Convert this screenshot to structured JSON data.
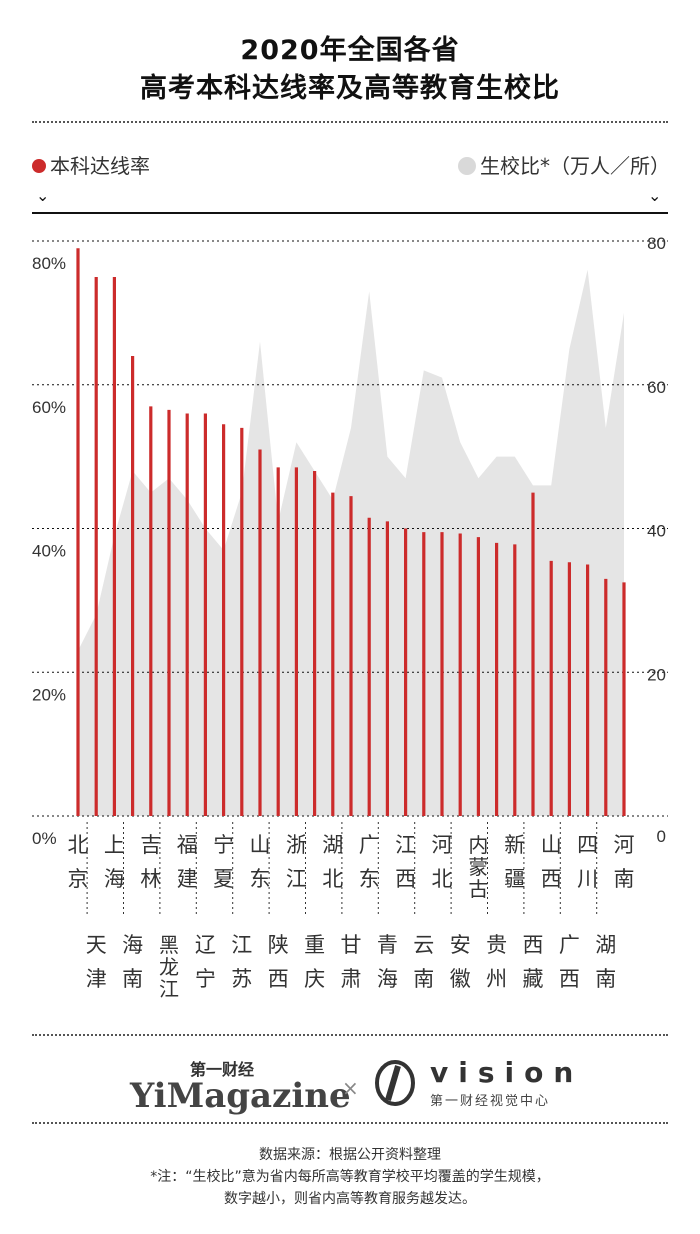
{
  "title_line1": "2020年全国各省",
  "title_line2": "高考本科达线率及高等教育生校比",
  "legend": {
    "left_label": "本科达线率",
    "right_label": "生校比*（万人／所）",
    "left_color": "#cc2b2b",
    "right_color": "#d9d9d9"
  },
  "chevron": "⌄",
  "chart_data": {
    "type": "bar",
    "title": "2020年全国各省 高考本科达线率及高等教育生校比",
    "y_left_label": "本科达线率",
    "y_right_label": "生校比*（万人／所）",
    "y_left_ticks": [
      "80%",
      "60%",
      "40%",
      "20%",
      "0%"
    ],
    "y_right_ticks": [
      "80",
      "60",
      "40",
      "20",
      "0"
    ],
    "y_left_lim": [
      0,
      80
    ],
    "y_right_lim": [
      0,
      80
    ],
    "categories": [
      "北京",
      "天津",
      "上海",
      "海南",
      "吉林",
      "黑龙江",
      "福建",
      "辽宁",
      "宁夏",
      "江苏",
      "山东",
      "陕西",
      "浙江",
      "重庆",
      "湖北",
      "甘肃",
      "广东",
      "青海",
      "江西",
      "云南",
      "河北",
      "安徽",
      "内蒙古",
      "贵州",
      "新疆",
      "西藏",
      "山西",
      "广西",
      "四川",
      "湖南",
      "河南"
    ],
    "row1_labels": [
      "北京",
      "上海",
      "吉林",
      "福建",
      "宁夏",
      "山东",
      "浙江",
      "湖北",
      "广东",
      "江西",
      "河北",
      "内蒙古",
      "新疆",
      "山西",
      "四川",
      "河南"
    ],
    "row2_labels": [
      "天津",
      "海南",
      "黑龙江",
      "辽宁",
      "江苏",
      "陕西",
      "重庆",
      "甘肃",
      "青海",
      "云南",
      "安徽",
      "贵州",
      "西藏",
      "广西",
      "湖南"
    ],
    "series": [
      {
        "name": "本科达线率",
        "type": "bar",
        "color": "#cc2b2b",
        "values": [
          79,
          75,
          75,
          64,
          57,
          56.5,
          56,
          56,
          54.5,
          54,
          51,
          48.5,
          48.5,
          48,
          45,
          44.5,
          41.5,
          41,
          40,
          39.5,
          39.5,
          39.3,
          38.8,
          38,
          37.8,
          45,
          35.5,
          35.3,
          35,
          33,
          32.5
        ]
      },
      {
        "name": "生校比",
        "type": "area",
        "color": "#e5e5e5",
        "values": [
          23,
          28,
          39,
          48,
          45,
          47,
          44,
          40,
          37,
          45,
          66,
          41,
          52,
          48,
          44,
          54,
          73,
          50,
          47,
          62,
          61,
          52,
          47,
          50,
          50,
          46,
          46,
          65,
          76,
          54,
          70
        ]
      }
    ]
  },
  "logo": {
    "cn_small": "第一财经",
    "en_big": "YiMagazine",
    "times": "×",
    "vision_word": "vision",
    "vision_sub": "第一财经视觉中心"
  },
  "footer": {
    "source": "数据来源：根据公开资料整理",
    "note1": "*注：“生校比”意为省内每所高等教育学校平均覆盖的学生规模，",
    "note2": "数字越小，则省内高等教育服务越发达。"
  }
}
